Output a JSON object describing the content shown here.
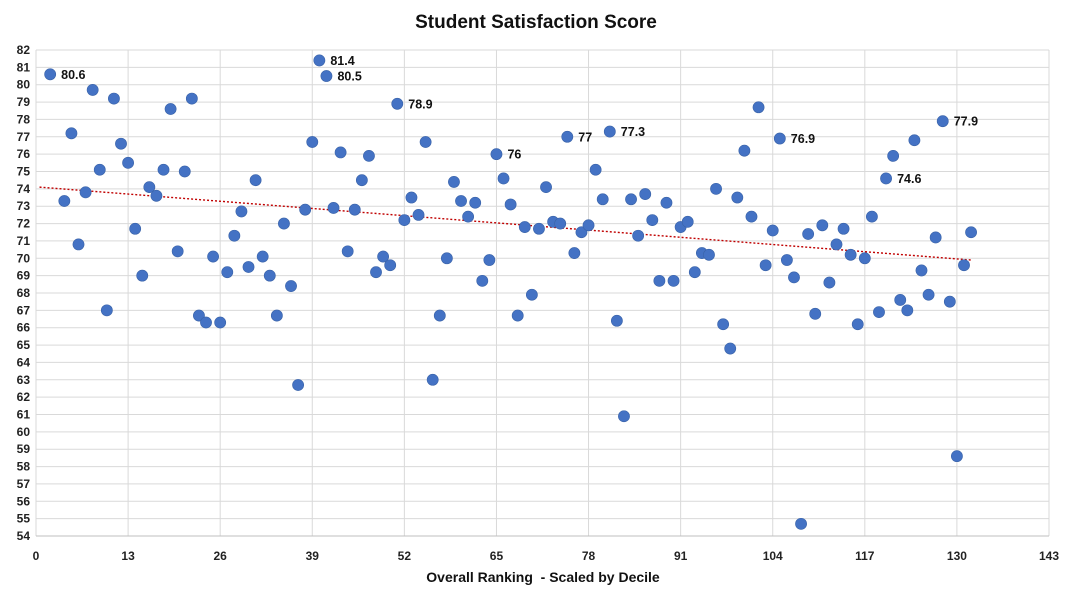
{
  "colors": {
    "point": "#4472C4",
    "trend": "#C00000"
  },
  "chart_data": {
    "type": "scatter",
    "title": "Student Satisfaction Score",
    "xlabel": "Overall Ranking  - Scaled by Decile",
    "ylabel": "",
    "xlim": [
      0,
      143
    ],
    "ylim": [
      54,
      82
    ],
    "xticks": [
      0,
      13,
      26,
      39,
      52,
      65,
      78,
      91,
      104,
      117,
      130,
      143
    ],
    "xtick_labels": [
      "0",
      "13",
      "26",
      "39",
      "52",
      "65",
      "78",
      "91",
      "104",
      "117",
      "130",
      "143"
    ],
    "yticks": [
      54,
      55,
      56,
      57,
      58,
      59,
      60,
      61,
      62,
      63,
      64,
      65,
      66,
      67,
      68,
      69,
      70,
      71,
      72,
      73,
      74,
      75,
      76,
      77,
      78,
      79,
      80,
      81,
      82
    ],
    "ytick_labels": [
      "54",
      "55",
      "56",
      "57",
      "58",
      "59",
      "60",
      "61",
      "62",
      "63",
      "64",
      "65",
      "66",
      "67",
      "68",
      "69",
      "70",
      "71",
      "72",
      "73",
      "74",
      "75",
      "76",
      "77",
      "78",
      "79",
      "80",
      "81",
      "82"
    ],
    "grid": true,
    "trendline": {
      "type": "linear",
      "x": [
        0.5,
        132
      ],
      "y": [
        74.1,
        69.9
      ]
    },
    "series": [
      {
        "name": "Student Satisfaction Score",
        "points": [
          [
            2,
            80.6
          ],
          [
            4,
            73.3
          ],
          [
            5,
            77.2
          ],
          [
            6,
            70.8
          ],
          [
            7,
            73.8
          ],
          [
            8,
            79.7
          ],
          [
            9,
            75.1
          ],
          [
            10,
            67.0
          ],
          [
            11,
            79.2
          ],
          [
            12,
            76.6
          ],
          [
            13,
            75.5
          ],
          [
            14,
            71.7
          ],
          [
            15,
            69.0
          ],
          [
            16,
            74.1
          ],
          [
            17,
            73.6
          ],
          [
            18,
            75.1
          ],
          [
            19,
            78.6
          ],
          [
            20,
            70.4
          ],
          [
            21,
            75.0
          ],
          [
            22,
            79.2
          ],
          [
            23,
            66.7
          ],
          [
            24,
            66.3
          ],
          [
            25,
            70.1
          ],
          [
            26,
            66.3
          ],
          [
            27,
            69.2
          ],
          [
            28,
            71.3
          ],
          [
            29,
            72.7
          ],
          [
            30,
            69.5
          ],
          [
            31,
            74.5
          ],
          [
            32,
            70.1
          ],
          [
            33,
            69.0
          ],
          [
            34,
            66.7
          ],
          [
            35,
            72.0
          ],
          [
            36,
            68.4
          ],
          [
            37,
            62.7
          ],
          [
            38,
            72.8
          ],
          [
            39,
            76.7
          ],
          [
            40,
            81.4
          ],
          [
            41,
            80.5
          ],
          [
            42,
            72.9
          ],
          [
            43,
            76.1
          ],
          [
            44,
            70.4
          ],
          [
            45,
            72.8
          ],
          [
            46,
            74.5
          ],
          [
            47,
            75.9
          ],
          [
            48,
            69.2
          ],
          [
            49,
            70.1
          ],
          [
            50,
            69.6
          ],
          [
            51,
            78.9
          ],
          [
            52,
            72.2
          ],
          [
            53,
            73.5
          ],
          [
            54,
            72.5
          ],
          [
            55,
            76.7
          ],
          [
            56,
            63.0
          ],
          [
            57,
            66.7
          ],
          [
            58,
            70.0
          ],
          [
            59,
            74.4
          ],
          [
            60,
            73.3
          ],
          [
            61,
            72.4
          ],
          [
            62,
            73.2
          ],
          [
            63,
            68.7
          ],
          [
            64,
            69.9
          ],
          [
            65,
            76.0
          ],
          [
            66,
            74.6
          ],
          [
            67,
            73.1
          ],
          [
            68,
            66.7
          ],
          [
            69,
            71.8
          ],
          [
            70,
            67.9
          ],
          [
            71,
            71.7
          ],
          [
            72,
            74.1
          ],
          [
            73,
            72.1
          ],
          [
            74,
            72.0
          ],
          [
            75,
            77.0
          ],
          [
            76,
            70.3
          ],
          [
            77,
            71.5
          ],
          [
            78,
            71.9
          ],
          [
            79,
            75.1
          ],
          [
            80,
            73.4
          ],
          [
            81,
            77.3
          ],
          [
            82,
            66.4
          ],
          [
            83,
            60.9
          ],
          [
            84,
            73.4
          ],
          [
            85,
            71.3
          ],
          [
            86,
            73.7
          ],
          [
            87,
            72.2
          ],
          [
            88,
            68.7
          ],
          [
            89,
            73.2
          ],
          [
            90,
            68.7
          ],
          [
            91,
            71.8
          ],
          [
            92,
            72.1
          ],
          [
            93,
            69.2
          ],
          [
            94,
            70.3
          ],
          [
            95,
            70.2
          ],
          [
            96,
            74.0
          ],
          [
            97,
            66.2
          ],
          [
            98,
            64.8
          ],
          [
            99,
            73.5
          ],
          [
            100,
            76.2
          ],
          [
            101,
            72.4
          ],
          [
            102,
            78.7
          ],
          [
            103,
            69.6
          ],
          [
            104,
            71.6
          ],
          [
            105,
            76.9
          ],
          [
            106,
            69.9
          ],
          [
            107,
            68.9
          ],
          [
            108,
            54.7
          ],
          [
            109,
            71.4
          ],
          [
            110,
            66.8
          ],
          [
            111,
            71.9
          ],
          [
            112,
            68.6
          ],
          [
            113,
            70.8
          ],
          [
            114,
            71.7
          ],
          [
            115,
            70.2
          ],
          [
            116,
            66.2
          ],
          [
            117,
            70.0
          ],
          [
            118,
            72.4
          ],
          [
            119,
            66.9
          ],
          [
            120,
            74.6
          ],
          [
            121,
            75.9
          ],
          [
            122,
            67.6
          ],
          [
            123,
            67.0
          ],
          [
            124,
            76.8
          ],
          [
            125,
            69.3
          ],
          [
            126,
            67.9
          ],
          [
            127,
            71.2
          ],
          [
            128,
            77.9
          ],
          [
            129,
            67.5
          ],
          [
            130,
            58.6
          ],
          [
            131,
            69.6
          ],
          [
            132,
            71.5
          ]
        ]
      }
    ],
    "annotations": [
      {
        "x": 2,
        "y": 80.6,
        "label": "80.6"
      },
      {
        "x": 40,
        "y": 81.4,
        "label": "81.4"
      },
      {
        "x": 41,
        "y": 80.5,
        "label": "80.5"
      },
      {
        "x": 51,
        "y": 78.9,
        "label": "78.9"
      },
      {
        "x": 65,
        "y": 76.0,
        "label": "76"
      },
      {
        "x": 75,
        "y": 77.0,
        "label": "77"
      },
      {
        "x": 81,
        "y": 77.3,
        "label": "77.3"
      },
      {
        "x": 105,
        "y": 76.9,
        "label": "76.9"
      },
      {
        "x": 120,
        "y": 74.6,
        "label": "74.6"
      },
      {
        "x": 128,
        "y": 77.9,
        "label": "77.9"
      }
    ]
  }
}
